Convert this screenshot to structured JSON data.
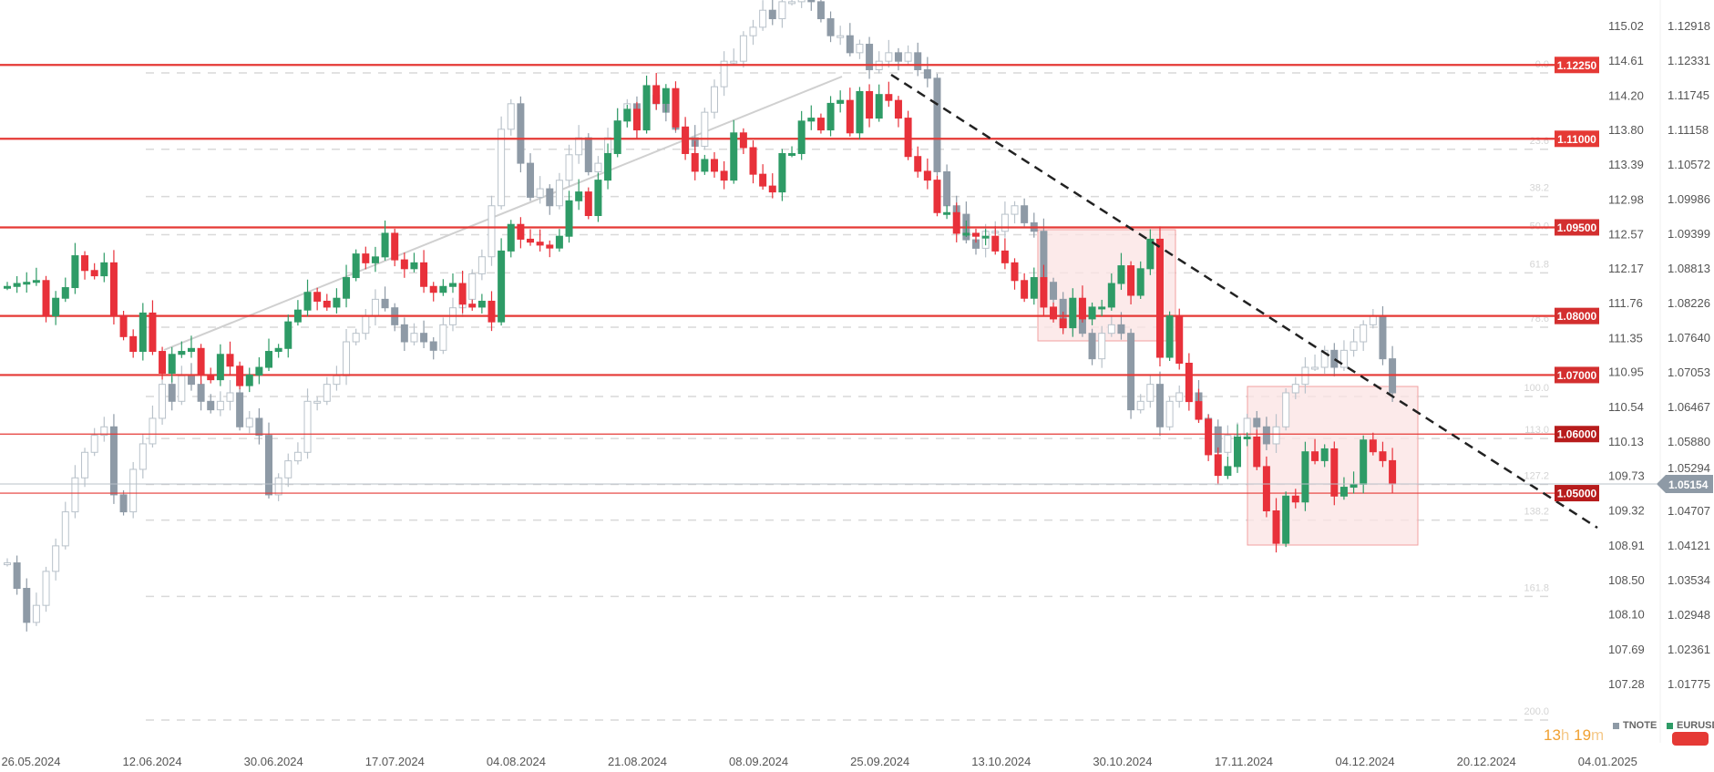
{
  "chart_data": {
    "type": "candlestick",
    "series": [
      {
        "name": "TNOTE",
        "color": "#8e9aa6",
        "axis": "left-of-right",
        "ylim": [
          107.28,
          115.02
        ],
        "closes": [
          108.7,
          108.4,
          108.0,
          108.2,
          108.6,
          108.9,
          109.3,
          109.7,
          110.0,
          110.2,
          110.3,
          109.5,
          109.3,
          109.8,
          110.1,
          110.4,
          110.8,
          110.6,
          110.9,
          110.8,
          110.6,
          110.5,
          110.6,
          110.7,
          110.3,
          110.4,
          110.2,
          109.5,
          109.7,
          109.9,
          110.0,
          110.6,
          110.6,
          110.8,
          110.9,
          111.3,
          111.4,
          111.6,
          111.8,
          111.7,
          111.5,
          111.3,
          111.4,
          111.3,
          111.2,
          111.5,
          111.7,
          111.8,
          112.1,
          112.3,
          112.9,
          113.8,
          114.1,
          113.4,
          113.0,
          113.1,
          112.9,
          113.2,
          113.5,
          113.7,
          113.3,
          113.4,
          113.7,
          113.9,
          114.1,
          113.8,
          114.2,
          114.1,
          114.0,
          113.8,
          113.7,
          113.6,
          114.0,
          114.3,
          114.6,
          114.6,
          114.9,
          115.0,
          115.2,
          115.1,
          115.3,
          115.3,
          115.4,
          115.3,
          115.1,
          114.9,
          114.9,
          114.7,
          114.8,
          114.5,
          114.6,
          114.7,
          114.6,
          114.7,
          114.5,
          114.4,
          113.3,
          112.9,
          112.8,
          112.5,
          112.4,
          112.6,
          112.6,
          112.8,
          112.9,
          112.7,
          112.6,
          112.0,
          111.8,
          111.5,
          111.7,
          111.4,
          111.1,
          111.4,
          111.5,
          111.4,
          110.5,
          110.6,
          110.8,
          110.3,
          110.6,
          110.7,
          110.7,
          110.4,
          110.3,
          110.0,
          110.2,
          110.2,
          110.4,
          110.3,
          110.1,
          110.3,
          110.7,
          110.8,
          111.0,
          111.0,
          111.2,
          111.0,
          111.2,
          111.3,
          111.5,
          111.6,
          111.1,
          110.7
        ]
      },
      {
        "name": "EURUSD",
        "color": "#2e9b66",
        "down_color": "#e8313a",
        "axis": "right",
        "ylim": [
          1.01775,
          1.12918
        ],
        "closes": [
          1.085,
          1.0855,
          1.0857,
          1.086,
          1.08,
          1.083,
          1.0848,
          1.0902,
          1.0877,
          1.0868,
          1.089,
          1.0801,
          1.0765,
          1.074,
          1.0805,
          1.074,
          1.0703,
          1.0735,
          1.074,
          1.0745,
          1.07,
          1.0692,
          1.0735,
          1.0715,
          1.0682,
          1.07,
          1.0713,
          1.074,
          1.0745,
          1.079,
          1.081,
          1.084,
          1.0825,
          1.0815,
          1.083,
          1.0865,
          1.0905,
          1.089,
          1.09,
          1.094,
          1.0895,
          1.088,
          1.089,
          1.085,
          1.084,
          1.085,
          1.0855,
          1.082,
          1.0815,
          1.0825,
          1.079,
          1.091,
          1.0955,
          1.093,
          1.0925,
          1.092,
          1.0915,
          1.0935,
          1.0995,
          1.101,
          1.097,
          1.103,
          1.1075,
          1.113,
          1.115,
          1.1115,
          1.119,
          1.116,
          1.1185,
          1.112,
          1.1075,
          1.1045,
          1.1065,
          1.1045,
          1.103,
          1.111,
          1.1085,
          1.104,
          1.102,
          1.101,
          1.1075,
          1.1075,
          1.113,
          1.1135,
          1.1115,
          1.116,
          1.1165,
          1.111,
          1.118,
          1.1135,
          1.1175,
          1.1165,
          1.1135,
          1.107,
          1.1045,
          1.103,
          1.0975,
          1.0975,
          1.094,
          1.094,
          1.0935,
          1.0935,
          1.091,
          1.089,
          1.086,
          1.083,
          1.0865,
          1.0815,
          1.0795,
          1.078,
          1.083,
          1.0795,
          1.0815,
          1.0815,
          1.0855,
          1.0885,
          1.0835,
          1.088,
          1.093,
          1.073,
          1.08,
          1.072,
          1.0655,
          1.0625,
          1.0565,
          1.053,
          1.0545,
          1.0595,
          1.0595,
          1.0545,
          1.047,
          1.0415,
          1.0495,
          1.0485,
          1.057,
          1.0555,
          1.0575,
          1.0495,
          1.051,
          1.0515,
          1.059,
          1.057,
          1.0555,
          1.05154
        ]
      }
    ],
    "x_tick_labels": [
      "26.05.2024",
      "12.06.2024",
      "30.06.2024",
      "17.07.2024",
      "04.08.2024",
      "21.08.2024",
      "08.09.2024",
      "25.09.2024",
      "13.10.2024",
      "30.10.2024",
      "17.11.2024",
      "04.12.2024",
      "20.12.2024",
      "04.01.2025"
    ],
    "tnote_tick_labels": [
      "115.02",
      "114.61",
      "114.20",
      "113.80",
      "113.39",
      "112.98",
      "112.57",
      "112.17",
      "111.76",
      "111.35",
      "110.95",
      "110.54",
      "110.13",
      "109.73",
      "109.32",
      "108.91",
      "108.50",
      "108.10",
      "107.69",
      "107.28"
    ],
    "eurusd_tick_labels": [
      "1.12918",
      "1.12331",
      "1.11745",
      "1.11158",
      "1.10572",
      "1.09986",
      "1.09399",
      "1.08813",
      "1.08226",
      "1.07640",
      "1.07053",
      "1.06467",
      "1.05880",
      "1.05294",
      "1.04707",
      "1.04121",
      "1.03534",
      "1.02948",
      "1.02361",
      "1.01775"
    ],
    "horizontal_levels": [
      {
        "label": "1.12250",
        "value": 1.1225,
        "weight": "thick",
        "tag_color": "#e53935"
      },
      {
        "label": "1.11000",
        "value": 1.11,
        "weight": "thick",
        "tag_color": "#e53935"
      },
      {
        "label": "1.09500",
        "value": 1.095,
        "weight": "thick",
        "tag_color": "#d32f2f"
      },
      {
        "label": "1.08000",
        "value": 1.08,
        "weight": "thick",
        "tag_color": "#d32f2f"
      },
      {
        "label": "1.07000",
        "value": 1.07,
        "weight": "thick",
        "tag_color": "#d32f2f"
      },
      {
        "label": "1.06000",
        "value": 1.06,
        "weight": "thin",
        "tag_color": "#b71c1c"
      },
      {
        "label": "1.05000",
        "value": 1.05,
        "weight": "thin",
        "tag_color": "#b71c1c"
      }
    ],
    "fibonacci_levels": [
      "0.0",
      "23.6",
      "38.2",
      "50.0",
      "61.8",
      "78.6",
      "100.0",
      "113.0",
      "127.2",
      "138.2",
      "161.8",
      "200.0"
    ],
    "current_price": {
      "label": "1.05154",
      "value": 1.05154,
      "color": "#8e9aa6"
    },
    "grid": false,
    "legend": {
      "placement": "bottom-right",
      "items": [
        {
          "label": "TNOTE",
          "color": "#8e9aa6"
        },
        {
          "label": "EURUSD",
          "color": "#2e9b66"
        }
      ]
    }
  },
  "timer": {
    "hours": "13",
    "hours_unit": "h",
    "minutes": "19",
    "minutes_unit": "m"
  },
  "colors": {
    "level_line": "#e53935",
    "zone_fill": "#fbe3e3",
    "zone_border": "#f2a0a0",
    "trendline": "#222222",
    "uptrend": "#cfcfcf"
  }
}
